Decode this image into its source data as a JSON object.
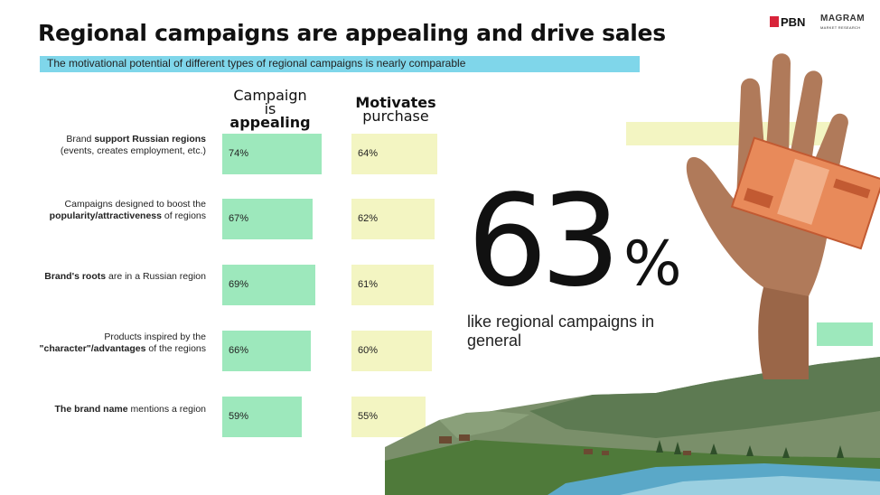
{
  "header": {
    "title": "Regional campaigns are appealing and drive sales",
    "subtitle": "The motivational potential of different types of regional campaigns is nearly comparable",
    "logo_pbn": "PBN",
    "logo_magram": "MAGRAM",
    "logo_magram_sub": "MARKET RESEARCH"
  },
  "columns": {
    "appealing": {
      "line1": "Campaign",
      "line2": "is",
      "line3": "appealing"
    },
    "motivates": {
      "line1": "Motivates",
      "line2": "purchase"
    }
  },
  "rows": [
    {
      "pre": "Brand ",
      "bold": "support Russian regions",
      "post": " (events, creates employment, etc.)"
    },
    {
      "pre": "Campaigns designed to boost the ",
      "bold": "popularity/attractiveness",
      "post": " of regions"
    },
    {
      "pre": "",
      "bold": "Brand's roots",
      "post": " are in a Russian region"
    },
    {
      "pre": "Products inspired by the ",
      "bold": "\"character\"/advantages",
      "post": "  of the regions"
    },
    {
      "pre": "",
      "bold": "The brand name",
      "post": "  mentions a region"
    }
  ],
  "highlight": {
    "value": "63",
    "unit": "%",
    "caption": "like regional campaigns in general"
  },
  "colors": {
    "appealing_bar": "#9de8bc",
    "motivates_bar": "#f3f5c2",
    "subtitle_bar": "#7fd6ea",
    "pbn_red": "#d8243a"
  },
  "images": {
    "hand": "hand holding banknote",
    "landscape": "mountain valley with river and village"
  },
  "chart_data": {
    "type": "bar",
    "orientation": "horizontal",
    "categories": [
      "Brand support Russian regions (events, creates employment, etc.)",
      "Campaigns designed to boost the popularity/attractiveness of regions",
      "Brand's roots are in a Russian region",
      "Products inspired by the \"character\"/advantages of the regions",
      "The brand name mentions a region"
    ],
    "series": [
      {
        "name": "Campaign is appealing",
        "values": [
          74,
          67,
          69,
          66,
          59
        ],
        "labels": [
          "74%",
          "67%",
          "69%",
          "66%",
          "59%"
        ]
      },
      {
        "name": "Motivates purchase",
        "values": [
          64,
          62,
          61,
          60,
          55
        ],
        "labels": [
          "64%",
          "62%",
          "61%",
          "60%",
          "55%"
        ]
      }
    ]
  }
}
